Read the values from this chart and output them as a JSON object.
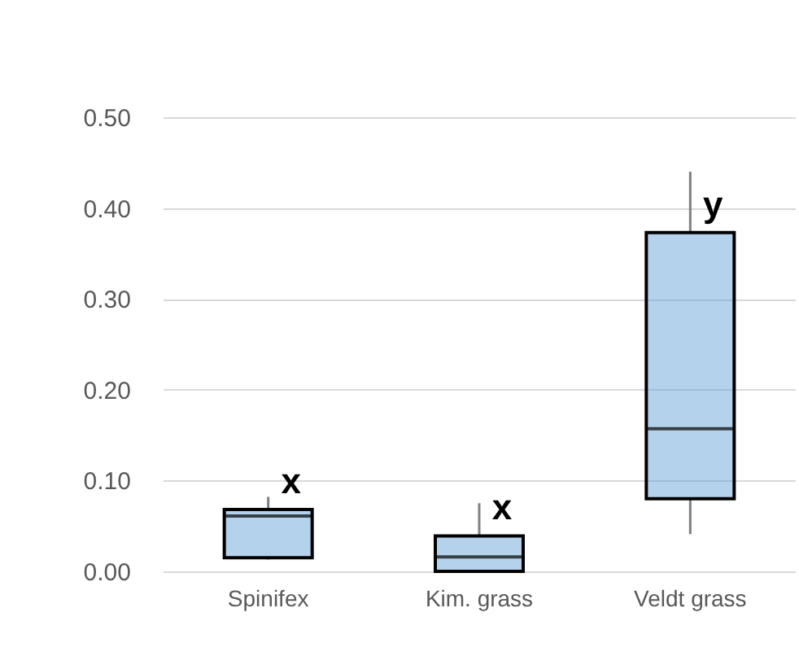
{
  "chart_data": {
    "type": "box",
    "categories": [
      "Spinifex",
      "Kim. grass",
      "Veldt grass"
    ],
    "color": "#5b9bd5",
    "boxes": [
      {
        "low": 0.013,
        "q1": 0.015,
        "median": 0.061,
        "q3": 0.068,
        "high": 0.082
      },
      {
        "low": 0.0,
        "q1": 0.0,
        "median": 0.016,
        "q3": 0.039,
        "high": 0.075
      },
      {
        "low": 0.041,
        "q1": 0.08,
        "median": 0.157,
        "q3": 0.373,
        "high": 0.44
      }
    ],
    "ylim": [
      0,
      0.5
    ],
    "yticks": [
      {
        "value": 0,
        "label": "0.00"
      },
      {
        "value": 0.1,
        "label": "0.10"
      },
      {
        "value": 0.2,
        "label": "0.20"
      },
      {
        "value": 0.3,
        "label": "0.30"
      },
      {
        "value": 0.4,
        "label": "0.40"
      },
      {
        "value": 0.5,
        "label": "0.50"
      }
    ],
    "grid": "y",
    "annotations": [
      {
        "text": "x",
        "x": "Spinifex",
        "y": 0.068
      },
      {
        "text": "x",
        "x": "Kim. grass",
        "y": 0.039
      },
      {
        "text": "y",
        "x": "Veldt grass",
        "y": 0.373
      }
    ]
  }
}
